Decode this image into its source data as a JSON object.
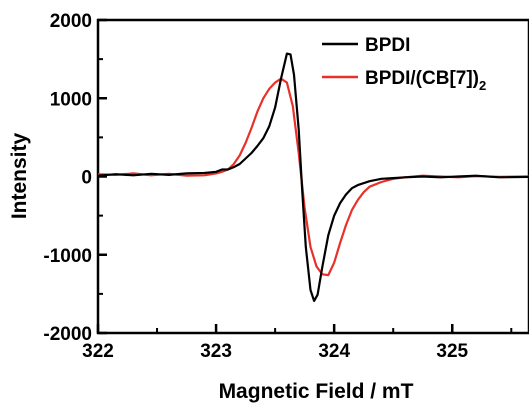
{
  "chart_data": {
    "type": "line",
    "title": "",
    "xlabel": "Magnetic Field / mT",
    "ylabel": "Intensity",
    "xlim": [
      322,
      325.65
    ],
    "ylim": [
      -2000,
      2000
    ],
    "x_ticks": [
      "322",
      "323",
      "324",
      "325"
    ],
    "y_ticks": [
      "-2000",
      "-1000",
      "0",
      "1000",
      "2000"
    ],
    "grid": false,
    "legend_position": "top-right",
    "series": [
      {
        "name": "BPDI",
        "legend_main": "BPDI",
        "legend_sub": "",
        "legend_tail": "",
        "color": "#000000",
        "points": [
          [
            322.0,
            10
          ],
          [
            322.15,
            30
          ],
          [
            322.3,
            15
          ],
          [
            322.45,
            35
          ],
          [
            322.6,
            20
          ],
          [
            322.75,
            40
          ],
          [
            322.9,
            45
          ],
          [
            323.0,
            60
          ],
          [
            323.05,
            90
          ],
          [
            323.1,
            90
          ],
          [
            323.15,
            120
          ],
          [
            323.2,
            160
          ],
          [
            323.25,
            230
          ],
          [
            323.3,
            300
          ],
          [
            323.35,
            390
          ],
          [
            323.4,
            490
          ],
          [
            323.45,
            640
          ],
          [
            323.5,
            880
          ],
          [
            323.55,
            1250
          ],
          [
            323.6,
            1570
          ],
          [
            323.63,
            1560
          ],
          [
            323.66,
            1300
          ],
          [
            323.7,
            600
          ],
          [
            323.73,
            -200
          ],
          [
            323.76,
            -900
          ],
          [
            323.8,
            -1450
          ],
          [
            323.83,
            -1590
          ],
          [
            323.86,
            -1510
          ],
          [
            323.9,
            -1150
          ],
          [
            323.95,
            -750
          ],
          [
            324.0,
            -500
          ],
          [
            324.05,
            -340
          ],
          [
            324.1,
            -230
          ],
          [
            324.15,
            -150
          ],
          [
            324.2,
            -110
          ],
          [
            324.3,
            -60
          ],
          [
            324.4,
            -30
          ],
          [
            324.5,
            -20
          ],
          [
            324.6,
            -10
          ],
          [
            324.75,
            0
          ],
          [
            324.9,
            -10
          ],
          [
            325.05,
            0
          ],
          [
            325.2,
            10
          ],
          [
            325.4,
            -10
          ],
          [
            325.65,
            -5
          ]
        ]
      },
      {
        "name": "BPDI/(CB[7])2",
        "legend_main": "BPDI/(CB[7])",
        "legend_sub": "2",
        "legend_tail": "",
        "color": "#e8312a",
        "points": [
          [
            322.0,
            30
          ],
          [
            322.15,
            20
          ],
          [
            322.3,
            40
          ],
          [
            322.45,
            15
          ],
          [
            322.6,
            35
          ],
          [
            322.75,
            10
          ],
          [
            322.9,
            15
          ],
          [
            323.0,
            40
          ],
          [
            323.05,
            60
          ],
          [
            323.1,
            90
          ],
          [
            323.15,
            160
          ],
          [
            323.2,
            270
          ],
          [
            323.25,
            430
          ],
          [
            323.3,
            620
          ],
          [
            323.35,
            830
          ],
          [
            323.4,
            1000
          ],
          [
            323.45,
            1120
          ],
          [
            323.5,
            1200
          ],
          [
            323.55,
            1250
          ],
          [
            323.6,
            1200
          ],
          [
            323.65,
            900
          ],
          [
            323.7,
            300
          ],
          [
            323.75,
            -400
          ],
          [
            323.8,
            -900
          ],
          [
            323.85,
            -1150
          ],
          [
            323.9,
            -1250
          ],
          [
            323.95,
            -1260
          ],
          [
            324.0,
            -1100
          ],
          [
            324.05,
            -850
          ],
          [
            324.1,
            -620
          ],
          [
            324.15,
            -430
          ],
          [
            324.2,
            -300
          ],
          [
            324.25,
            -200
          ],
          [
            324.3,
            -130
          ],
          [
            324.4,
            -70
          ],
          [
            324.5,
            -30
          ],
          [
            324.6,
            -10
          ],
          [
            324.75,
            10
          ],
          [
            324.9,
            0
          ],
          [
            325.05,
            -10
          ],
          [
            325.2,
            5
          ],
          [
            325.4,
            -5
          ],
          [
            325.65,
            0
          ]
        ]
      }
    ]
  }
}
